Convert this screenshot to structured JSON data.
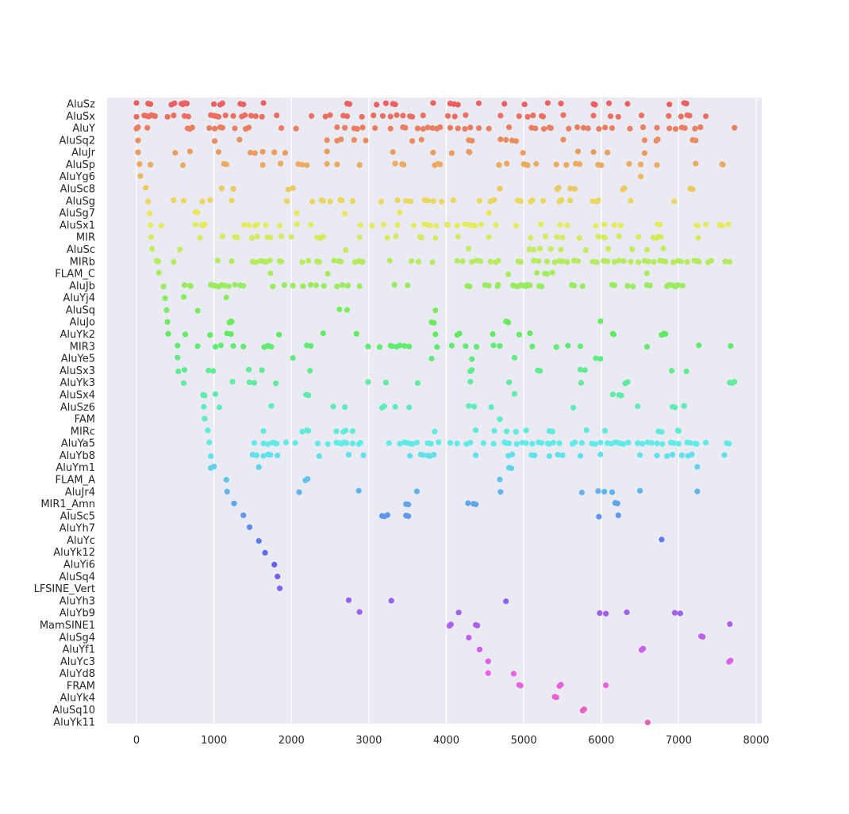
{
  "chart_data": {
    "type": "scatter",
    "orientation": "horizontal strip plot",
    "title": "",
    "xlabel": "",
    "ylabel": "",
    "xlim": [
      -190,
      8040
    ],
    "x_ticks": [
      0,
      1000,
      2000,
      3000,
      4000,
      5000,
      6000,
      7000,
      8000
    ],
    "x_tick_labels": [
      "0",
      "1000",
      "2000",
      "3000",
      "4000",
      "5000",
      "6000",
      "7000",
      "8000"
    ],
    "grid": "vertical lines on",
    "background_color": "#eaeaf2",
    "grid_color": "#ffffff",
    "palette": "husl hue sweep from pink-red (top) through green and blue to pink-magenta (bottom)",
    "categories": [
      "AluSz",
      "AluSx",
      "AluY",
      "AluSq2",
      "AluJr",
      "AluSp",
      "AluYg6",
      "AluSc8",
      "AluSg",
      "AluSg7",
      "AluSx1",
      "MIR",
      "AluSc",
      "MIRb",
      "FLAM_C",
      "AluJb",
      "AluYj4",
      "AluSq",
      "AluJo",
      "AluYk2",
      "MIR3",
      "AluYe5",
      "AluSx3",
      "AluYk3",
      "AluSx4",
      "AluSz6",
      "FAM",
      "MIRc",
      "AluYa5",
      "AluYb8",
      "AluYm1",
      "FLAM_A",
      "AluJr4",
      "MIR1_Amn",
      "AluSc5",
      "AluYh7",
      "AluYc",
      "AluYk12",
      "AluYi6",
      "AluSq4",
      "LFSINE_Vert",
      "AluYh3",
      "AluYb9",
      "MamSINE1",
      "AluSg4",
      "AluYf1",
      "AluYc3",
      "AluYd8",
      "FRAM",
      "AluYk4",
      "AluSq10",
      "AluYk11"
    ],
    "series": [
      {
        "category": "AluSz",
        "x": [
          0,
          150,
          180,
          450,
          490,
          580,
          600,
          620,
          650,
          1000,
          1080,
          1110,
          1340,
          1380,
          1640,
          2720,
          2750,
          3100,
          3220,
          3310,
          3340,
          3830,
          4050,
          4100,
          4150,
          4420,
          4750,
          5010,
          5310,
          5480,
          5900,
          5920,
          6100,
          6340,
          6880,
          7070,
          7100
        ]
      },
      {
        "category": "AluSx",
        "x": [
          0,
          100,
          130,
          160,
          190,
          220,
          240,
          400,
          480,
          620,
          670,
          960,
          1000,
          1030,
          1060,
          1150,
          1250,
          1360,
          1400,
          1480,
          1540,
          1620,
          1810,
          2260,
          2440,
          2500,
          2670,
          2720,
          2910,
          3060,
          3180,
          3280,
          3360,
          3440,
          3530,
          3560,
          3700,
          4020,
          4110,
          4250,
          4700,
          4940,
          5050,
          5120,
          5230,
          5250,
          5510,
          5900,
          6120,
          6220,
          6520,
          6870,
          7030,
          7110,
          7140,
          7350
        ]
      },
      {
        "category": "AluY",
        "x": [
          0,
          20,
          140,
          660,
          690,
          720,
          940,
          1010,
          1080,
          1110,
          1270,
          1410,
          1450,
          1870,
          2060,
          2590,
          2690,
          2810,
          2850,
          2920,
          3080,
          3280,
          3440,
          3470,
          3630,
          3700,
          3760,
          3820,
          3880,
          3920,
          4050,
          4150,
          4240,
          4310,
          4420,
          4550,
          4810,
          5100,
          5150,
          5260,
          5330,
          5350,
          5580,
          5690,
          5770,
          5830,
          5970,
          6050,
          6140,
          6370,
          6540,
          6720,
          6880,
          6960,
          7040,
          7080,
          7210,
          7280,
          7720
        ]
      },
      {
        "category": "AluSq2",
        "x": [
          20,
          1010,
          1330,
          2460,
          2590,
          2640,
          2810,
          2960,
          3560,
          3680,
          4290,
          4330,
          4700,
          4770,
          4850,
          4900,
          5510,
          6560,
          6710,
          6730,
          7180,
          7220
        ]
      },
      {
        "category": "AluJr",
        "x": [
          20,
          500,
          690,
          1060,
          1470,
          1530,
          1630,
          1780,
          1920,
          2460,
          3310,
          3830,
          4070,
          4290,
          4300,
          4990,
          5700,
          5900,
          6080,
          6560
        ]
      },
      {
        "category": "AluSp",
        "x": [
          40,
          180,
          600,
          1130,
          1160,
          1630,
          1860,
          2090,
          2140,
          2200,
          2460,
          2590,
          2880,
          3340,
          3430,
          3450,
          3850,
          3890,
          3920,
          4680,
          4780,
          5000,
          5030,
          5050,
          5160,
          5420,
          5550,
          5670,
          5720,
          5960,
          6000,
          6360,
          6510,
          6720,
          7220,
          7560,
          7570
        ]
      },
      {
        "category": "AluYg6",
        "x": [
          50,
          6510
        ]
      },
      {
        "category": "AluSc8",
        "x": [
          120,
          1100,
          1250,
          1960,
          2020,
          4690,
          5430,
          5450,
          5600,
          5660,
          6280,
          6300,
          7150,
          7180
        ]
      },
      {
        "category": "AluSg",
        "x": [
          150,
          480,
          610,
          850,
          950,
          1230,
          1940,
          2270,
          2390,
          2410,
          2500,
          2630,
          2650,
          2790,
          3160,
          3370,
          3480,
          3540,
          3720,
          3760,
          3830,
          3940,
          4090,
          4430,
          4570,
          4620,
          4920,
          4960,
          5090,
          5110,
          5250,
          5460,
          5490,
          5600,
          5890,
          5940,
          5960,
          6380,
          6940
        ]
      },
      {
        "category": "AluSg7",
        "x": [
          170,
          760,
          790,
          2070,
          2690,
          3400,
          4550
        ]
      },
      {
        "category": "AluSx1",
        "x": [
          180,
          320,
          760,
          840,
          860,
          880,
          1390,
          1450,
          1530,
          1560,
          1670,
          1850,
          2070,
          2250,
          2890,
          3040,
          3190,
          3370,
          3580,
          3720,
          3750,
          3790,
          3870,
          4010,
          4020,
          4140,
          4240,
          4290,
          4340,
          4370,
          4450,
          4640,
          4900,
          5220,
          5470,
          5560,
          5930,
          6040,
          6170,
          6250,
          6730,
          6760,
          7230,
          7250,
          7350,
          7530,
          7560,
          7640
        ]
      },
      {
        "category": "MIR",
        "x": [
          190,
          820,
          1110,
          1270,
          1300,
          1490,
          1560,
          1690,
          1730,
          1870,
          2000,
          2330,
          2380,
          2410,
          2880,
          3240,
          3350,
          3660,
          3680,
          3860,
          4150,
          4550,
          5090,
          5280,
          5430,
          5500,
          5720,
          5960,
          6030,
          6050,
          6230,
          6480,
          6670,
          6710,
          6740,
          6770,
          7250
        ]
      },
      {
        "category": "AluSc",
        "x": [
          200,
          560,
          2700,
          4290,
          5070,
          5130,
          5210,
          5350,
          5480,
          5800,
          6090,
          6400,
          6590,
          6800
        ]
      },
      {
        "category": "MIRb",
        "x": [
          260,
          280,
          480,
          1050,
          1230,
          1500,
          1540,
          1600,
          1640,
          1670,
          1720,
          1850,
          1870,
          2140,
          2220,
          2330,
          2360,
          2550,
          2610,
          2640,
          2820,
          2870,
          2890,
          2920,
          3270,
          3550,
          3640,
          3820,
          4140,
          4210,
          4330,
          4390,
          4440,
          4570,
          4640,
          4670,
          4930,
          4960,
          5130,
          5190,
          5300,
          5400,
          5460,
          5500,
          5560,
          5650,
          5700,
          5890,
          5940,
          6030,
          6080,
          6170,
          6230,
          6290,
          6380,
          6480,
          6560,
          6610,
          6680,
          6760,
          6790,
          6830,
          6930,
          6990,
          7030,
          7110,
          7200,
          7230,
          7260,
          7380,
          7420,
          7600,
          7660
        ]
      },
      {
        "category": "FLAM_C",
        "x": [
          290,
          1730,
          2470,
          4800,
          5170,
          5270,
          5300,
          5370,
          6590
        ]
      },
      {
        "category": "AluJb",
        "x": [
          350,
          620,
          690,
          700,
          960,
          990,
          1020,
          1060,
          1100,
          1140,
          1190,
          1270,
          1340,
          1380,
          1760,
          1910,
          2020,
          2150,
          2250,
          2320,
          2420,
          2590,
          2660,
          2730,
          2880,
          3330,
          3500,
          4270,
          4300,
          4500,
          4550,
          4660,
          4670,
          4860,
          4880,
          4920,
          4960,
          5000,
          5030,
          5050,
          5080,
          5200,
          5230,
          5620,
          5650,
          5760,
          6140,
          6170,
          6340,
          6410,
          6590,
          6630,
          6850,
          6880,
          6920,
          6940,
          6960,
          6990,
          7050
        ]
      },
      {
        "category": "AluYj4",
        "x": [
          370,
          610,
          1160
        ]
      },
      {
        "category": "AluSq",
        "x": [
          390,
          790,
          2620,
          2720,
          3860
        ]
      },
      {
        "category": "AluJo",
        "x": [
          400,
          1200,
          1220,
          1230,
          3810,
          3840,
          4770,
          4790,
          4800,
          5990
        ]
      },
      {
        "category": "AluYk2",
        "x": [
          410,
          630,
          950,
          1170,
          1220,
          1840,
          2410,
          2840,
          3860,
          4140,
          4170,
          4600,
          4940,
          5080,
          6150,
          6160,
          6780,
          6810,
          6830
        ]
      },
      {
        "category": "MIR3",
        "x": [
          530,
          790,
          1020,
          1090,
          1250,
          1380,
          1650,
          1700,
          1710,
          1740,
          2200,
          2250,
          2990,
          3140,
          3280,
          3300,
          3360,
          3400,
          3460,
          3520,
          3880,
          4070,
          4250,
          4390,
          4610,
          4690,
          5110,
          5420,
          5570,
          5730,
          6590,
          7260,
          7670
        ]
      },
      {
        "category": "AluYe5",
        "x": [
          530,
          2020,
          3810,
          4330,
          4880,
          5930,
          5990
        ]
      },
      {
        "category": "AluSx3",
        "x": [
          540,
          620,
          930,
          990,
          1450,
          1620,
          2240,
          4310,
          4330,
          5180,
          5210,
          5730,
          5790,
          6910,
          7100
        ]
      },
      {
        "category": "AluYk3",
        "x": [
          610,
          1240,
          1460,
          1520,
          1800,
          2990,
          3220,
          3630,
          4310,
          4810,
          5740,
          6310,
          6340,
          7660,
          7690,
          7720
        ]
      },
      {
        "category": "AluSx4",
        "x": [
          860,
          880,
          1020,
          2190,
          2220,
          4880,
          6150,
          6230,
          6260
        ]
      },
      {
        "category": "AluSz6",
        "x": [
          870,
          1070,
          1740,
          2540,
          2690,
          3170,
          3200,
          3340,
          3520,
          4290,
          4360,
          4580,
          5640,
          6470,
          6920,
          6950,
          7070
        ]
      },
      {
        "category": "FAM",
        "x": [
          880,
          4690
        ]
      },
      {
        "category": "MIRc",
        "x": [
          920,
          1640,
          2140,
          2200,
          2220,
          2580,
          2670,
          2700,
          2790,
          3850,
          4380,
          4620,
          4780,
          4900,
          5030,
          5330,
          5370,
          5810,
          6050,
          6740,
          6780,
          6990,
          7000
        ]
      },
      {
        "category": "AluYa5",
        "x": [
          940,
          1520,
          1640,
          1700,
          1760,
          1790,
          1810,
          1930,
          2050,
          2340,
          2470,
          2580,
          2620,
          2650,
          2680,
          2710,
          2790,
          2870,
          2890,
          3260,
          3400,
          3460,
          3490,
          3530,
          3560,
          3620,
          3760,
          3800,
          3900,
          4050,
          4140,
          4260,
          4310,
          4480,
          4610,
          4750,
          4770,
          4810,
          4910,
          4980,
          5030,
          5110,
          5190,
          5230,
          5310,
          5330,
          5380,
          5460,
          5630,
          5660,
          5750,
          5880,
          5920,
          5990,
          6080,
          6130,
          6180,
          6220,
          6250,
          6290,
          6350,
          6470,
          6530,
          6600,
          6650,
          6720,
          6790,
          6900,
          6940,
          7000,
          7110,
          7150,
          7210,
          7230,
          7350,
          7620,
          7650
        ]
      },
      {
        "category": "AluYb8",
        "x": [
          960,
          1500,
          1550,
          1640,
          1700,
          1730,
          1820,
          2360,
          2740,
          2930,
          3530,
          3670,
          3700,
          3760,
          3790,
          3840,
          4380,
          4800,
          4850,
          5100,
          5140,
          5330,
          5440,
          5500,
          5730,
          5990,
          6500,
          6720,
          6850,
          6920,
          7040,
          7120,
          7170,
          7590
        ]
      },
      {
        "category": "AluYm1",
        "x": [
          960,
          1000,
          1580,
          4810,
          4840,
          7240
        ]
      },
      {
        "category": "FLAM_A",
        "x": [
          1160,
          2180,
          2210,
          4690
        ]
      },
      {
        "category": "AluJr4",
        "x": [
          1170,
          2100,
          2870,
          3620,
          4700,
          5750,
          5960,
          6040,
          6140,
          6500,
          7240
        ]
      },
      {
        "category": "MIR1_Amn",
        "x": [
          1260,
          3480,
          3510,
          4280,
          4350,
          4380,
          6180,
          6210
        ]
      },
      {
        "category": "AluSc5",
        "x": [
          1380,
          3170,
          3200,
          3240,
          3480,
          3510,
          5970,
          6220
        ]
      },
      {
        "category": "AluYh7",
        "x": [
          1460
        ]
      },
      {
        "category": "AluYc",
        "x": [
          1580,
          6780
        ]
      },
      {
        "category": "AluYk12",
        "x": [
          1660
        ]
      },
      {
        "category": "AluYi6",
        "x": [
          1780
        ]
      },
      {
        "category": "AluSq4",
        "x": [
          1820
        ]
      },
      {
        "category": "LFSINE_Vert",
        "x": [
          1850
        ]
      },
      {
        "category": "AluYh3",
        "x": [
          2740,
          3290,
          4770
        ]
      },
      {
        "category": "AluYb9",
        "x": [
          2880,
          4160,
          5980,
          6060,
          6330,
          6950,
          7020
        ]
      },
      {
        "category": "MamSINE1",
        "x": [
          4040,
          4060,
          4380,
          4400,
          7660
        ]
      },
      {
        "category": "AluSg4",
        "x": [
          4290,
          7290,
          7310
        ]
      },
      {
        "category": "AluYf1",
        "x": [
          4430,
          6520,
          6540
        ]
      },
      {
        "category": "AluYc3",
        "x": [
          4540,
          7650,
          7670
        ]
      },
      {
        "category": "AluYd8",
        "x": [
          4540,
          4870
        ]
      },
      {
        "category": "FRAM",
        "x": [
          4940,
          4960,
          5460,
          5480,
          6060
        ]
      },
      {
        "category": "AluYk4",
        "x": [
          5400,
          5420
        ]
      },
      {
        "category": "AluSq10",
        "x": [
          5760,
          5780
        ]
      },
      {
        "category": "AluYk11",
        "x": [
          6600
        ]
      }
    ]
  }
}
